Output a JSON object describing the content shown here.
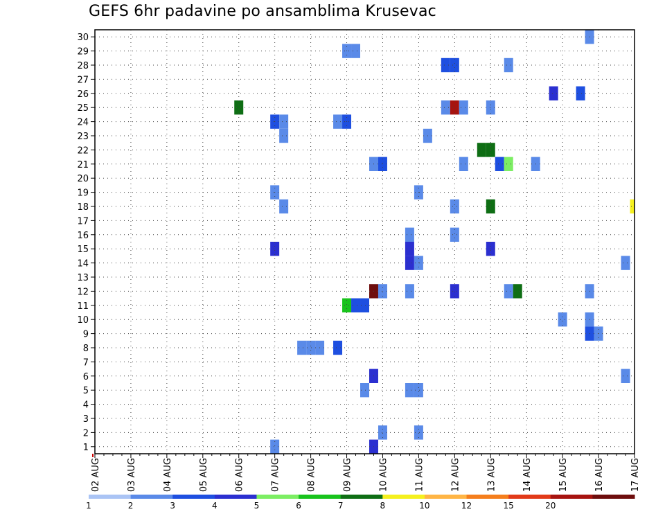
{
  "chart_data": {
    "type": "heatmap",
    "title": "GEFS 6hr padavine po ansamblima Krusevac",
    "xlabel": "",
    "ylabel": "",
    "x_ticks": [
      "02 AUG",
      "03 AUG",
      "04 AUG",
      "05 AUG",
      "06 AUG",
      "07 AUG",
      "08 AUG",
      "09 AUG",
      "10 AUG",
      "11 AUG",
      "12 AUG",
      "13 AUG",
      "14 AUG",
      "15 AUG",
      "16 AUG",
      "17 AUG"
    ],
    "y_ticks": [
      1,
      2,
      3,
      4,
      5,
      6,
      7,
      8,
      9,
      10,
      11,
      12,
      13,
      14,
      15,
      16,
      17,
      18,
      19,
      20,
      21,
      22,
      23,
      24,
      25,
      26,
      27,
      28,
      29,
      30
    ],
    "ylim": [
      0.5,
      30.5
    ],
    "xlim": [
      0,
      60
    ],
    "legend": {
      "labels": [
        "1",
        "2",
        "3",
        "4",
        "5",
        "6",
        "7",
        "8",
        "10",
        "12",
        "15",
        "20"
      ],
      "colors": [
        "#aac4f5",
        "#5a8ae8",
        "#1e4fe0",
        "#2b2fd0",
        "#7cee63",
        "#18c31c",
        "#0e6e14",
        "#f5f01e",
        "#ffb545",
        "#f57e1c",
        "#e23a19",
        "#a7130f",
        "#6e0d0d"
      ]
    },
    "cells": [
      {
        "t": 55,
        "m": 30,
        "v": 1
      },
      {
        "t": 28,
        "m": 29,
        "v": 1
      },
      {
        "t": 29,
        "m": 29,
        "v": 1
      },
      {
        "t": 39,
        "m": 28,
        "v": 2
      },
      {
        "t": 40,
        "m": 28,
        "v": 2
      },
      {
        "t": 46,
        "m": 28,
        "v": 1
      },
      {
        "t": 51,
        "m": 26,
        "v": 3
      },
      {
        "t": 54,
        "m": 26,
        "v": 2
      },
      {
        "t": 16,
        "m": 25,
        "v": 6
      },
      {
        "t": 39,
        "m": 25,
        "v": 1
      },
      {
        "t": 40,
        "m": 25,
        "v": 11
      },
      {
        "t": 41,
        "m": 25,
        "v": 1
      },
      {
        "t": 44,
        "m": 25,
        "v": 1
      },
      {
        "t": 20,
        "m": 24,
        "v": 2
      },
      {
        "t": 21,
        "m": 24,
        "v": 1
      },
      {
        "t": 27,
        "m": 24,
        "v": 1
      },
      {
        "t": 28,
        "m": 24,
        "v": 2
      },
      {
        "t": 21,
        "m": 23,
        "v": 1
      },
      {
        "t": 37,
        "m": 23,
        "v": 1
      },
      {
        "t": 43,
        "m": 22,
        "v": 6
      },
      {
        "t": 44,
        "m": 22,
        "v": 6
      },
      {
        "t": 31,
        "m": 21,
        "v": 1
      },
      {
        "t": 32,
        "m": 21,
        "v": 2
      },
      {
        "t": 41,
        "m": 21,
        "v": 1
      },
      {
        "t": 45,
        "m": 21,
        "v": 2
      },
      {
        "t": 46,
        "m": 21,
        "v": 4
      },
      {
        "t": 49,
        "m": 21,
        "v": 1
      },
      {
        "t": 20,
        "m": 19,
        "v": 1
      },
      {
        "t": 36,
        "m": 19,
        "v": 1
      },
      {
        "t": 21,
        "m": 18,
        "v": 1
      },
      {
        "t": 40,
        "m": 18,
        "v": 1
      },
      {
        "t": 44,
        "m": 18,
        "v": 6
      },
      {
        "t": 60,
        "m": 18,
        "v": 7
      },
      {
        "t": 35,
        "m": 16,
        "v": 1
      },
      {
        "t": 40,
        "m": 16,
        "v": 1
      },
      {
        "t": 20,
        "m": 15,
        "v": 3
      },
      {
        "t": 35,
        "m": 15,
        "v": 3
      },
      {
        "t": 44,
        "m": 15,
        "v": 3
      },
      {
        "t": 35,
        "m": 14,
        "v": 3
      },
      {
        "t": 36,
        "m": 14,
        "v": 1
      },
      {
        "t": 59,
        "m": 14,
        "v": 1
      },
      {
        "t": 31,
        "m": 12,
        "v": 12
      },
      {
        "t": 32,
        "m": 12,
        "v": 1
      },
      {
        "t": 35,
        "m": 12,
        "v": 1
      },
      {
        "t": 40,
        "m": 12,
        "v": 3
      },
      {
        "t": 46,
        "m": 12,
        "v": 1
      },
      {
        "t": 47,
        "m": 12,
        "v": 6
      },
      {
        "t": 55,
        "m": 12,
        "v": 1
      },
      {
        "t": 28,
        "m": 11,
        "v": 5
      },
      {
        "t": 29,
        "m": 11,
        "v": 2
      },
      {
        "t": 30,
        "m": 11,
        "v": 2
      },
      {
        "t": 52,
        "m": 10,
        "v": 1
      },
      {
        "t": 55,
        "m": 10,
        "v": 1
      },
      {
        "t": 55,
        "m": 9,
        "v": 2
      },
      {
        "t": 56,
        "m": 9,
        "v": 1
      },
      {
        "t": 23,
        "m": 8,
        "v": 1
      },
      {
        "t": 24,
        "m": 8,
        "v": 1
      },
      {
        "t": 25,
        "m": 8,
        "v": 1
      },
      {
        "t": 27,
        "m": 8,
        "v": 2
      },
      {
        "t": 31,
        "m": 6,
        "v": 3
      },
      {
        "t": 59,
        "m": 6,
        "v": 1
      },
      {
        "t": 30,
        "m": 5,
        "v": 1
      },
      {
        "t": 35,
        "m": 5,
        "v": 1
      },
      {
        "t": 36,
        "m": 5,
        "v": 1
      },
      {
        "t": 32,
        "m": 2,
        "v": 1
      },
      {
        "t": 36,
        "m": 2,
        "v": 1
      },
      {
        "t": 20,
        "m": 1,
        "v": 1
      },
      {
        "t": 31,
        "m": 1,
        "v": 3
      }
    ]
  }
}
